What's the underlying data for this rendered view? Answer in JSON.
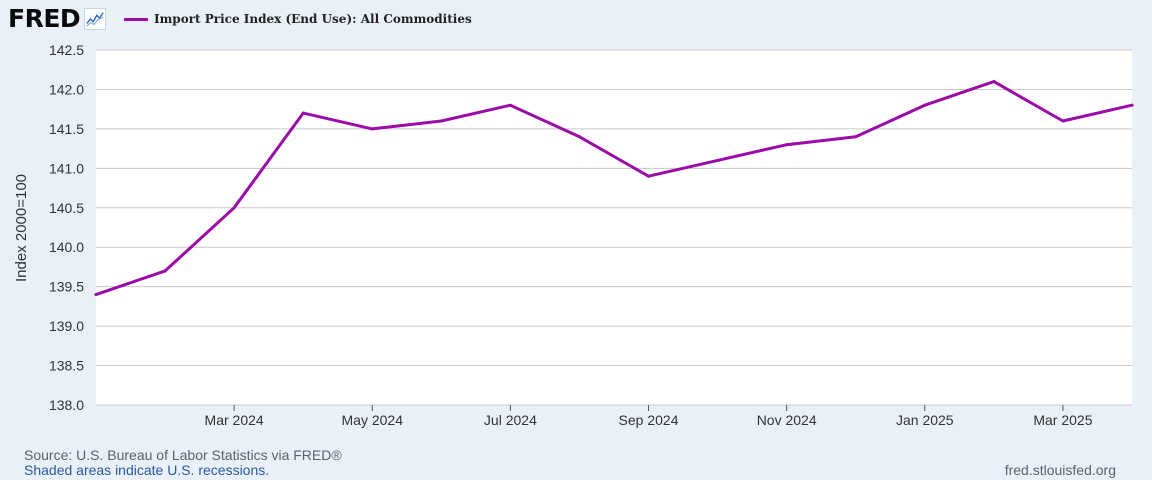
{
  "brand": {
    "logo_text": "FRED",
    "logo_icon": "line-chart-icon"
  },
  "chart_data": {
    "type": "line",
    "legend": "Import Price Index (End Use): All Commodities",
    "ylabel": "Index 2000=100",
    "ylim": [
      138.0,
      142.5
    ],
    "yticks": [
      "142.5",
      "142.0",
      "141.5",
      "141.0",
      "140.5",
      "140.0",
      "139.5",
      "139.0",
      "138.5",
      "138.0"
    ],
    "x": [
      "2024-01",
      "2024-02",
      "2024-03",
      "2024-04",
      "2024-05",
      "2024-06",
      "2024-07",
      "2024-08",
      "2024-09",
      "2024-10",
      "2024-11",
      "2024-12",
      "2025-01",
      "2025-02",
      "2025-03",
      "2025-04"
    ],
    "xtick_labels": [
      "Mar 2024",
      "May 2024",
      "Jul 2024",
      "Sep 2024",
      "Nov 2024",
      "Jan 2025",
      "Mar 2025"
    ],
    "xtick_dates": [
      "2024-03",
      "2024-05",
      "2024-07",
      "2024-09",
      "2024-11",
      "2025-01",
      "2025-03"
    ],
    "series": [
      {
        "name": "Import Price Index (End Use): All Commodities",
        "color": "#9b0ba8",
        "values": [
          139.4,
          139.7,
          140.5,
          141.7,
          141.5,
          141.6,
          141.8,
          141.4,
          140.9,
          141.1,
          141.3,
          141.4,
          141.8,
          142.1,
          141.6,
          141.8
        ]
      }
    ],
    "grid": true
  },
  "footer": {
    "source": "Source: U.S. Bureau of Labor Statistics via FRED®",
    "note": "Shaded areas indicate U.S. recessions.",
    "url": "fred.stlouisfed.org"
  }
}
